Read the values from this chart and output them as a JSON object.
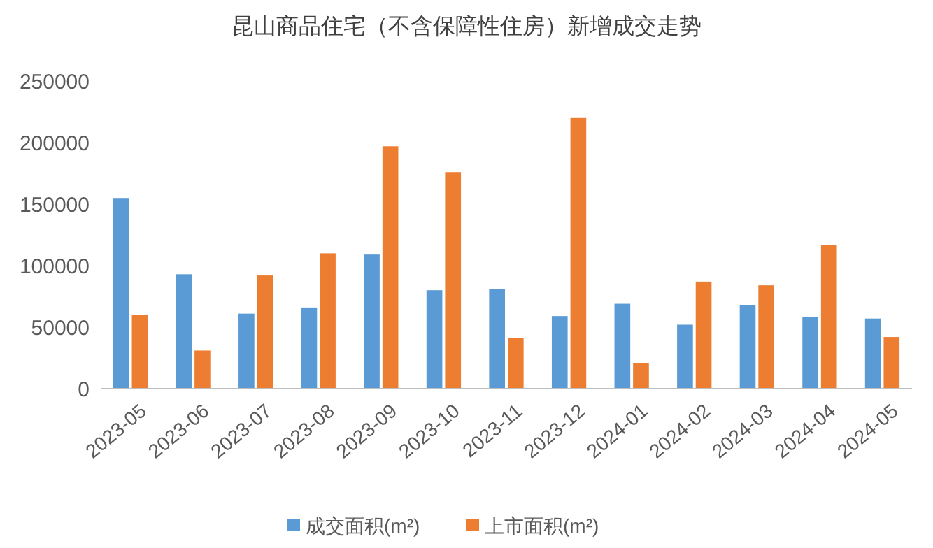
{
  "chart_data": {
    "type": "bar",
    "title": "昆山商品住宅（不含保障性住房）新增成交走势",
    "categories": [
      "2023-05",
      "2023-06",
      "2023-07",
      "2023-08",
      "2023-09",
      "2023-10",
      "2023-11",
      "2023-12",
      "2024-01",
      "2024-02",
      "2024-03",
      "2024-04",
      "2024-05"
    ],
    "series": [
      {
        "name": "成交面积(m²)",
        "color": "#5b9bd5",
        "values": [
          155000,
          93000,
          61000,
          66000,
          109000,
          80000,
          81000,
          59000,
          69000,
          52000,
          68000,
          58000,
          57000
        ]
      },
      {
        "name": "上市面积(m²)",
        "color": "#ed7d31",
        "values": [
          60000,
          31000,
          92000,
          110000,
          197000,
          176000,
          41000,
          220000,
          21000,
          87000,
          84000,
          117000,
          42000
        ]
      }
    ],
    "ylim": [
      0,
      250000
    ],
    "yticks": [
      0,
      50000,
      100000,
      150000,
      200000,
      250000
    ],
    "grid": false,
    "legend": "bottom"
  }
}
